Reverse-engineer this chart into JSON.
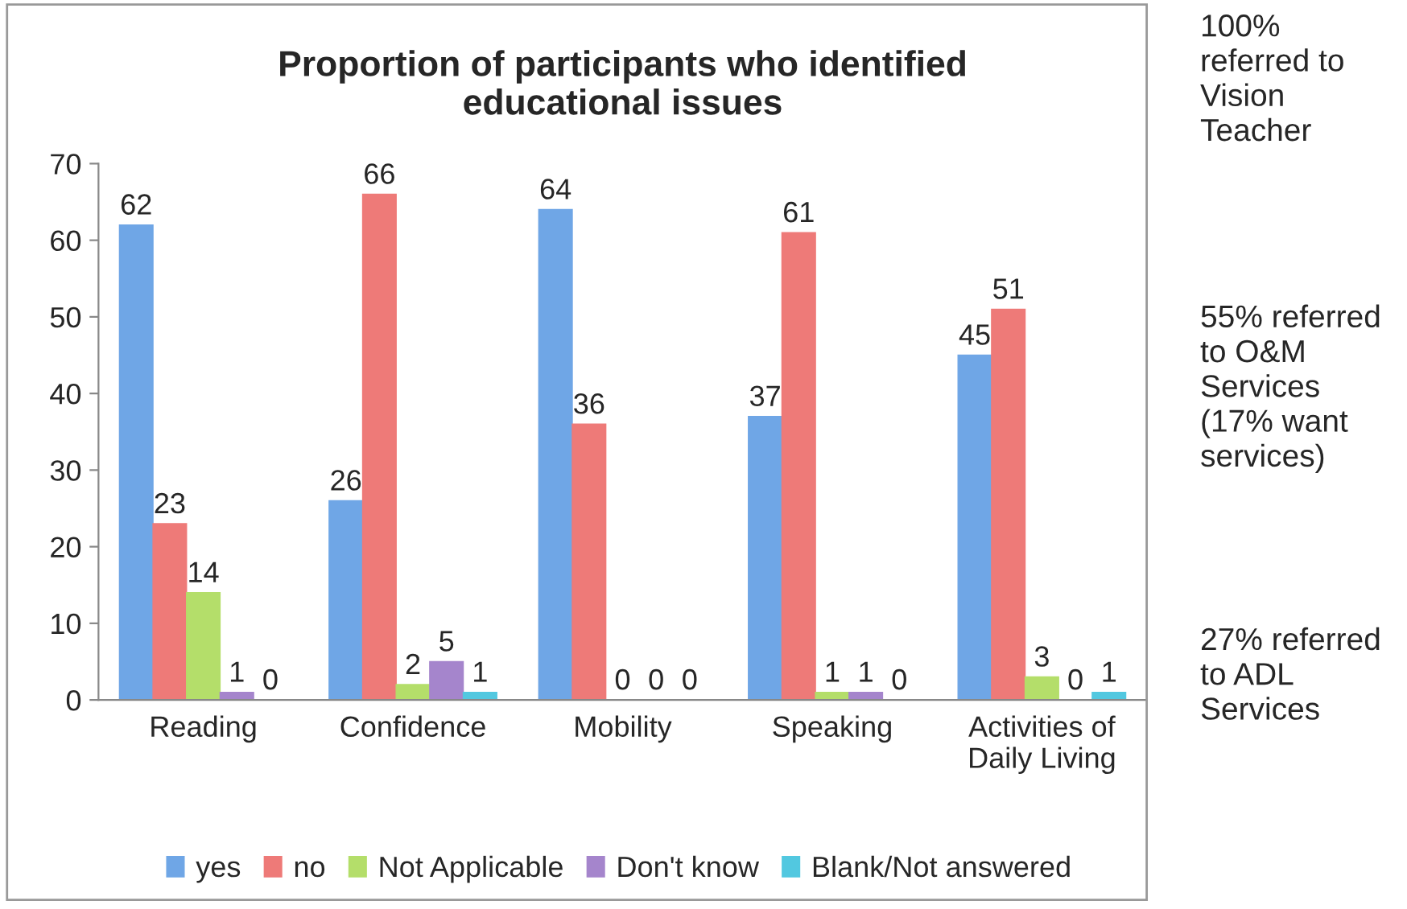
{
  "chart_data": {
    "type": "bar",
    "title": "Proportion of participants who identified\neducational issues",
    "categories": [
      "Reading",
      "Confidence",
      "Mobility",
      "Speaking",
      "Activities of\nDaily Living"
    ],
    "series": [
      {
        "name": "yes",
        "color": "#6fa6e6",
        "values": [
          62,
          26,
          64,
          37,
          45
        ]
      },
      {
        "name": "no",
        "color": "#ee7a78",
        "values": [
          23,
          66,
          36,
          61,
          51
        ]
      },
      {
        "name": "Not Applicable",
        "color": "#b4de6a",
        "values": [
          14,
          2,
          0,
          1,
          3
        ]
      },
      {
        "name": "Don't know",
        "color": "#a585cc",
        "values": [
          1,
          5,
          0,
          1,
          0
        ]
      },
      {
        "name": "Blank/Not answered",
        "color": "#52c8e0",
        "values": [
          0,
          1,
          0,
          0,
          1
        ]
      }
    ],
    "ylim": [
      0,
      70
    ],
    "yticks": [
      0,
      10,
      20,
      30,
      40,
      50,
      60,
      70
    ],
    "data_labels": true,
    "grid": false,
    "legend": "bottom",
    "annotations": [
      "100%\nreferred to\nVision\nTeacher",
      "55% referred\nto O&M\nServices\n(17% want\nservices)",
      "27% referred\nto ADL\nServices"
    ]
  }
}
